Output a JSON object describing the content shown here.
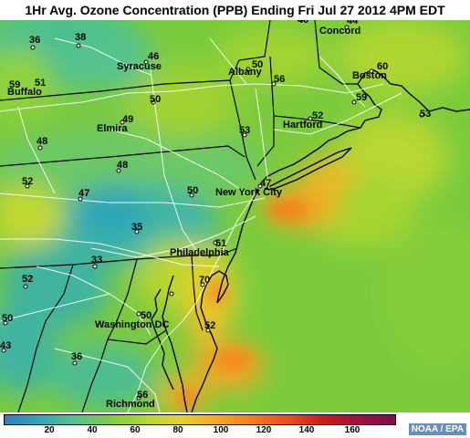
{
  "title": "1Hr Avg. Ozone Concentration (PPB) Ending Fri Jul 27 2012 4PM EDT",
  "legend": {
    "ticks": [
      "20",
      "40",
      "60",
      "80",
      "100",
      "120",
      "140",
      "160"
    ],
    "colors": [
      "#2f7fbf",
      "#33a7b7",
      "#56c28f",
      "#7fce3f",
      "#b4d830",
      "#e8d12c",
      "#f5a623",
      "#f57a1e",
      "#ea4d1a",
      "#c91b1b",
      "#a0103f",
      "#7a1050"
    ]
  },
  "credit": "NOAA / EPA",
  "cities": [
    {
      "id": "concord",
      "name": "Concord"
    },
    {
      "id": "syracuse",
      "name": "Syracuse"
    },
    {
      "id": "albany",
      "name": "Albany"
    },
    {
      "id": "boston",
      "name": "Boston"
    },
    {
      "id": "buffalo",
      "name": "Buffalo"
    },
    {
      "id": "hartford",
      "name": "Hartford"
    },
    {
      "id": "elmira",
      "name": "Elmira"
    },
    {
      "id": "new-york-city",
      "name": "New York City"
    },
    {
      "id": "philadelphia",
      "name": "Philadelphia"
    },
    {
      "id": "washington-dc",
      "name": "Washington DC"
    },
    {
      "id": "richmond",
      "name": "Richmond"
    }
  ],
  "readings": [
    "36",
    "38",
    "46",
    "50",
    "56",
    "40",
    "44",
    "60",
    "59",
    "51",
    "49",
    "50",
    "52",
    "59",
    "53",
    "48",
    "53",
    "48",
    "52",
    "47",
    "50",
    "47",
    "35",
    "51",
    "52",
    "33",
    "70",
    "50",
    "50",
    "52",
    "43",
    "36",
    "56"
  ]
}
